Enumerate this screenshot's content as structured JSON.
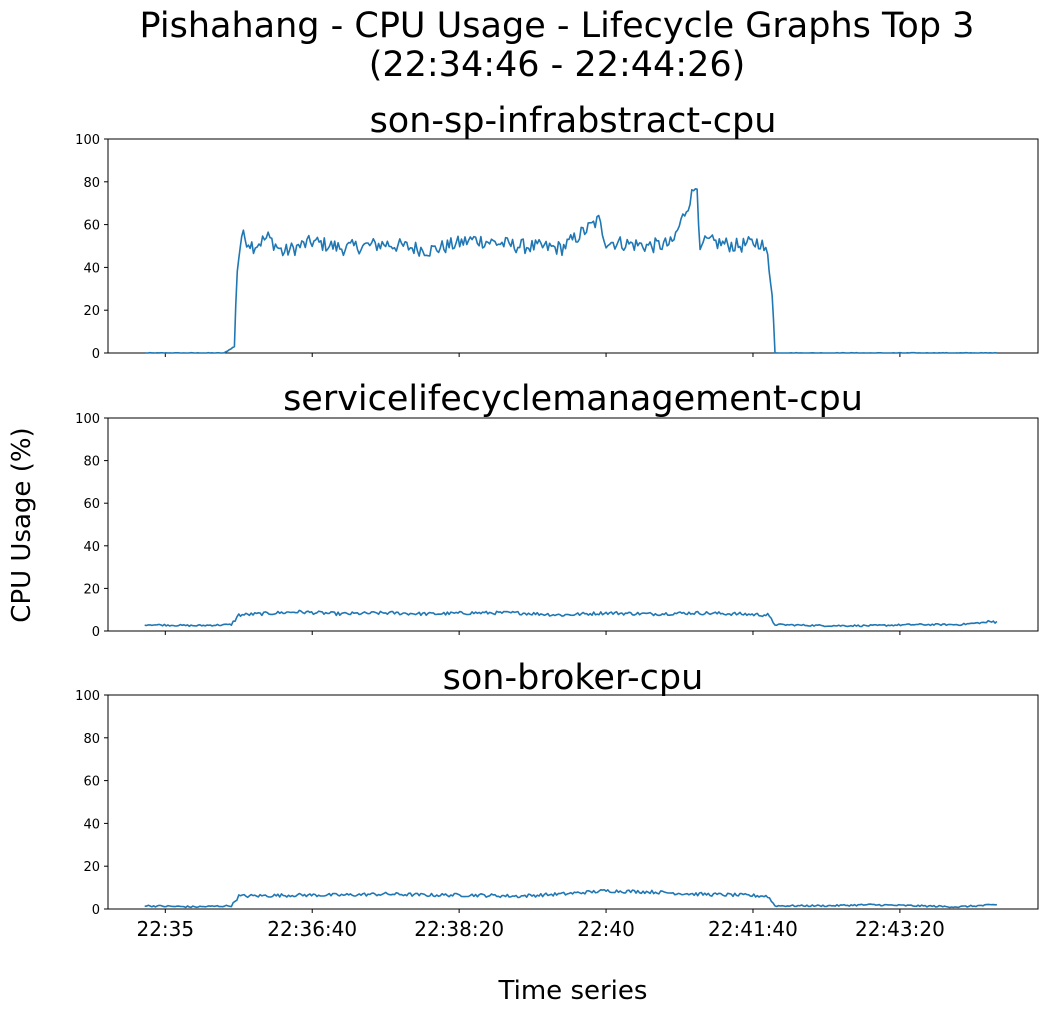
{
  "title_line1": "Pishahang - CPU Usage - Lifecycle Graphs Top 3",
  "title_line2": "(22:34:46 - 22:44:26)",
  "ylabel": "CPU Usage (%)",
  "xlabel": "Time series",
  "colors": {
    "line": "#1f77b4",
    "axes": "#000000",
    "background": "#ffffff"
  },
  "chart_data": [
    {
      "type": "line",
      "title": "son-sp-infrabstract-cpu",
      "ylim": [
        0,
        100
      ],
      "yticks": [
        "0",
        "20",
        "40",
        "60",
        "80",
        "100"
      ],
      "xlim_seconds_from_start": [
        -25,
        608
      ],
      "xticks": [
        "22:35",
        "22:36:40",
        "22:38:20",
        "22:40",
        "22:41:40",
        "22:43:20"
      ],
      "series": [
        {
          "x_time": [
            "22:34:46",
            "22:35:15",
            "22:35:40",
            "22:35:47",
            "22:35:49",
            "22:35:52",
            "22:36:00",
            "22:36:10",
            "22:36:20",
            "22:36:40",
            "22:37:00",
            "22:37:30",
            "22:38:00",
            "22:38:30",
            "22:39:00",
            "22:39:30",
            "22:39:55",
            "22:40:00",
            "22:40:30",
            "22:40:45",
            "22:41:02",
            "22:41:04",
            "22:41:06",
            "22:41:10",
            "22:41:30",
            "22:41:45",
            "22:41:50",
            "22:41:53",
            "22:41:55",
            "22:42:30",
            "22:43:00",
            "22:43:30",
            "22:44:00",
            "22:44:26"
          ],
          "values": [
            0,
            0,
            0,
            3,
            40,
            55,
            50,
            54,
            47,
            52,
            49,
            51,
            48,
            53,
            50,
            49,
            62,
            52,
            50,
            51,
            80,
            45,
            51,
            52,
            50,
            52,
            45,
            30,
            0,
            0,
            0,
            0,
            0,
            0
          ]
        }
      ]
    },
    {
      "type": "line",
      "title": "servicelifecyclemanagement-cpu",
      "ylim": [
        0,
        100
      ],
      "yticks": [
        "0",
        "20",
        "40",
        "60",
        "80",
        "100"
      ],
      "xlim_seconds_from_start": [
        -25,
        608
      ],
      "xticks": [
        "22:35",
        "22:36:40",
        "22:38:20",
        "22:40",
        "22:41:40",
        "22:43:20"
      ],
      "series": [
        {
          "x_time": [
            "22:34:46",
            "22:35:20",
            "22:35:45",
            "22:35:50",
            "22:36:30",
            "22:37:00",
            "22:37:30",
            "22:38:00",
            "22:38:30",
            "22:39:00",
            "22:39:30",
            "22:40:00",
            "22:40:30",
            "22:41:00",
            "22:41:30",
            "22:41:50",
            "22:41:55",
            "22:42:30",
            "22:43:00",
            "22:43:30",
            "22:44:00",
            "22:44:26"
          ],
          "values": [
            3,
            2.5,
            3,
            7.5,
            9,
            8,
            8.5,
            8,
            8.5,
            8.5,
            7.5,
            8.5,
            8,
            8.5,
            8,
            7.5,
            3,
            2.5,
            2.5,
            3,
            3,
            4.5
          ]
        }
      ]
    },
    {
      "type": "line",
      "title": "son-broker-cpu",
      "ylim": [
        0,
        100
      ],
      "yticks": [
        "0",
        "20",
        "40",
        "60",
        "80",
        "100"
      ],
      "xlim_seconds_from_start": [
        -25,
        608
      ],
      "xticks": [
        "22:35",
        "22:36:40",
        "22:38:20",
        "22:40",
        "22:41:40",
        "22:43:20"
      ],
      "series": [
        {
          "x_time": [
            "22:34:46",
            "22:35:20",
            "22:35:45",
            "22:35:50",
            "22:36:30",
            "22:37:00",
            "22:37:30",
            "22:38:00",
            "22:38:30",
            "22:39:00",
            "22:39:30",
            "22:40:00",
            "22:40:30",
            "22:41:00",
            "22:41:30",
            "22:41:50",
            "22:41:55",
            "22:42:30",
            "22:43:00",
            "22:43:30",
            "22:44:00",
            "22:44:26"
          ],
          "values": [
            1.5,
            1,
            1.5,
            6,
            6.5,
            6.5,
            7,
            6.5,
            6.5,
            6,
            7,
            8.5,
            8,
            7,
            6.5,
            6,
            1.5,
            1.5,
            2,
            1.5,
            1,
            2
          ]
        }
      ]
    }
  ]
}
